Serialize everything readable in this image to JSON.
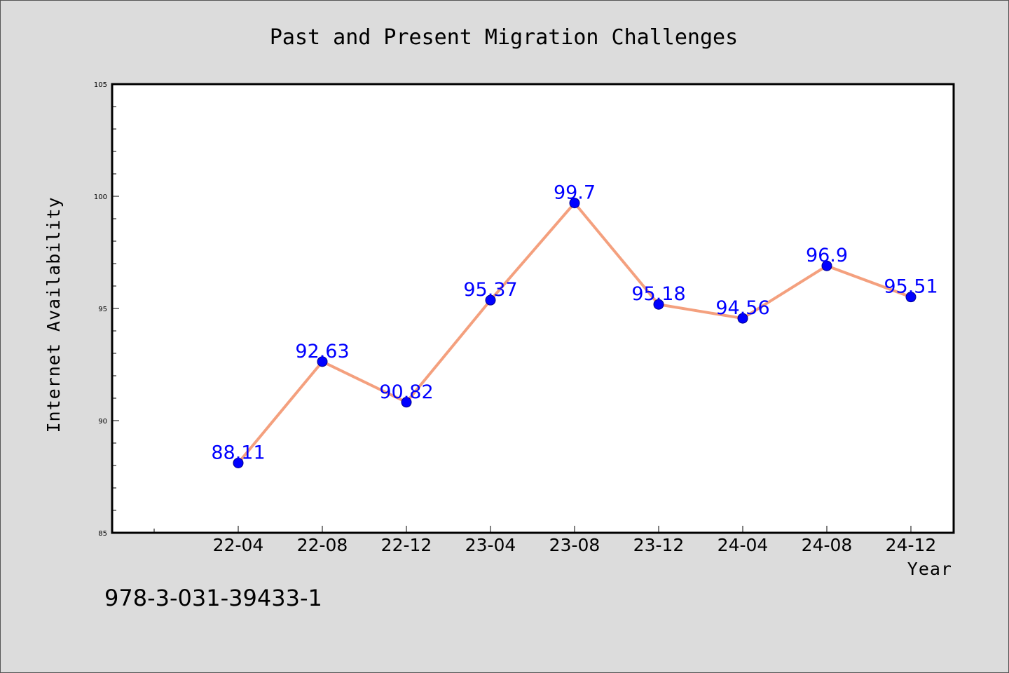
{
  "chart_data": {
    "type": "line",
    "title": "Past and Present Migration Challenges",
    "xlabel": "Year",
    "ylabel": "Internet Availability",
    "categories": [
      "22-04",
      "22-08",
      "22-12",
      "23-04",
      "23-08",
      "23-12",
      "24-04",
      "24-08",
      "24-12"
    ],
    "series": [
      {
        "values": [
          88.11,
          92.63,
          90.82,
          95.37,
          99.7,
          95.18,
          94.56,
          96.9,
          95.51
        ],
        "labels": [
          "88.11",
          "92.63",
          "90.82",
          "95.37",
          "99.7",
          "95.18",
          "94.56",
          "96.9",
          "95.51"
        ],
        "line_color": "#f4a07e",
        "marker_color": "#0000ff"
      }
    ],
    "ylim": [
      85,
      105
    ],
    "y_ticks": [
      "85",
      "90",
      "95",
      "100",
      "105"
    ],
    "grid": false,
    "legend": "none",
    "label_color": "#0000ff"
  },
  "footnote": "978-3-031-39433-1",
  "colors": {
    "background": "#dcdcdc",
    "plot_area": "#ffffff",
    "axes": "#000000"
  }
}
